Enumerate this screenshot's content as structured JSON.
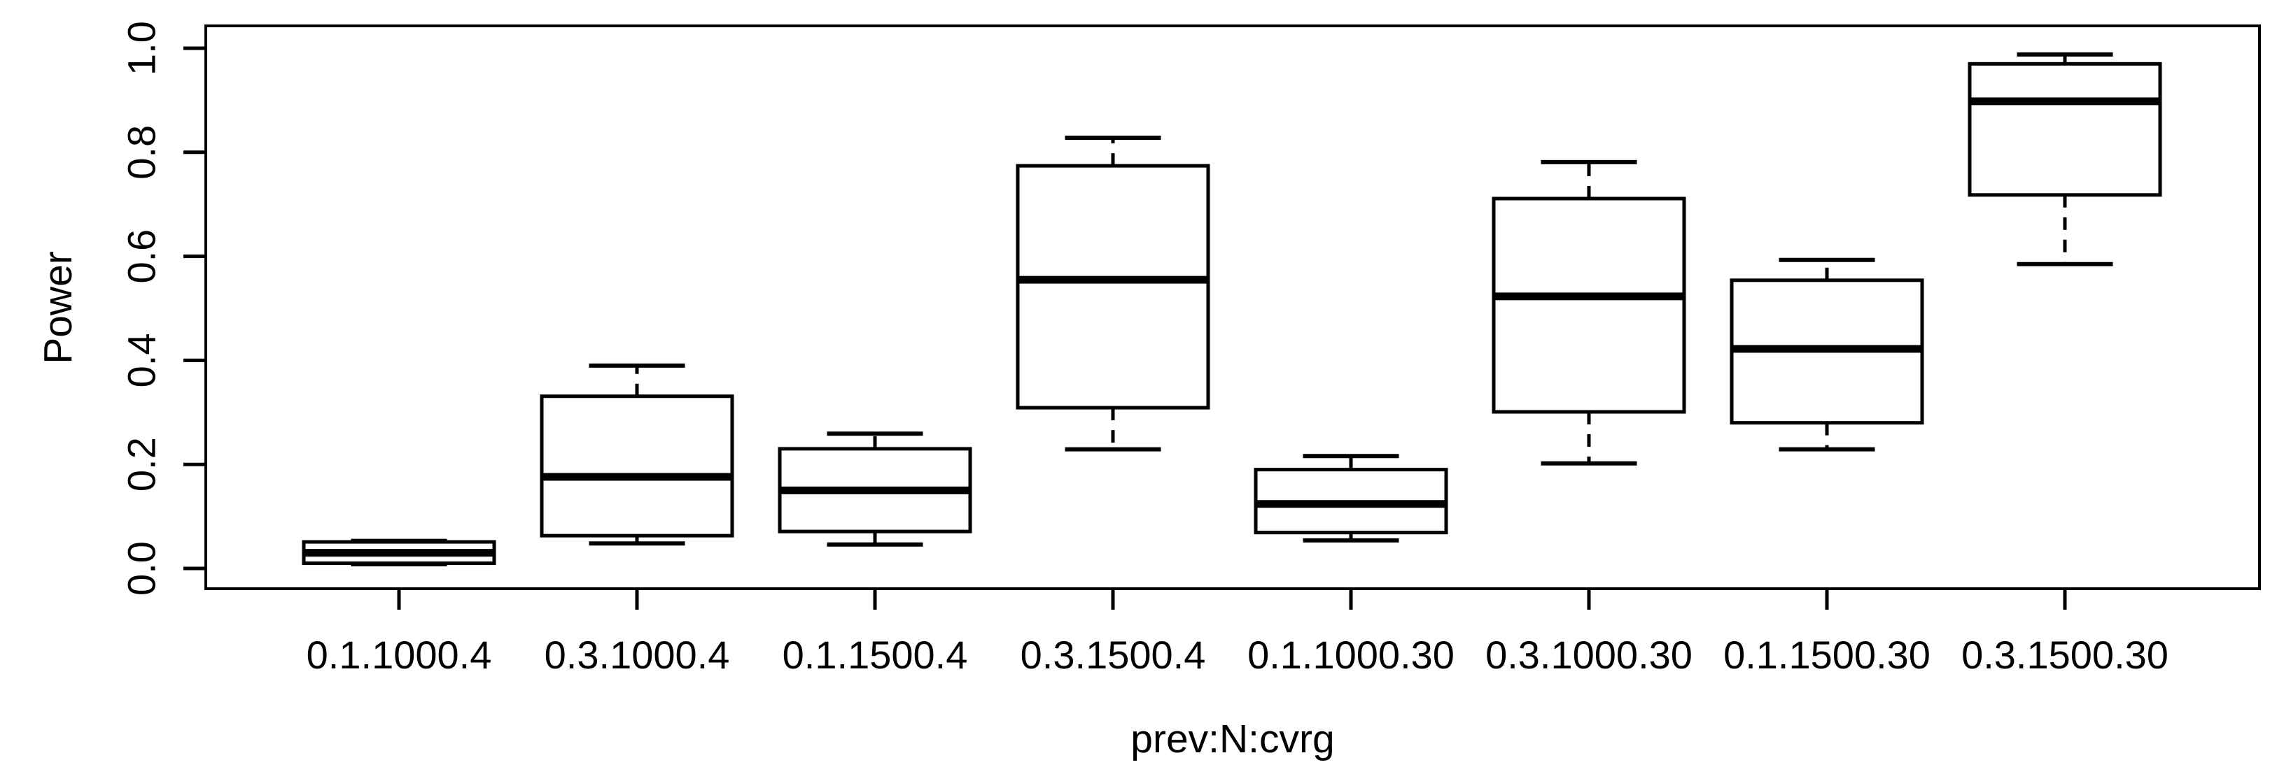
{
  "chart_data": {
    "type": "boxplot",
    "title": "",
    "xlabel": "prev:N:cvrg",
    "ylabel": "Power",
    "ylim": [
      0.0,
      1.0
    ],
    "grid": false,
    "legend": null,
    "background_color": "#ffffff",
    "stroke_color": "#000000",
    "y_ticks": [
      0.0,
      0.2,
      0.4,
      0.6,
      0.8,
      1.0
    ],
    "y_tick_labels": [
      "0.0",
      "0.2",
      "0.4",
      "0.6",
      "0.8",
      "1.0"
    ],
    "categories": [
      "0.1.1000.4",
      "0.3.1000.4",
      "0.1.1500.4",
      "0.3.1500.4",
      "0.1.1000.30",
      "0.3.1000.30",
      "0.1.1500.30",
      "0.3.1500.30"
    ],
    "series": [
      {
        "category": "0.1.1000.4",
        "whisker_low": 0.008,
        "q1": 0.01,
        "median": 0.03,
        "q3": 0.051,
        "whisker_high": 0.053
      },
      {
        "category": "0.3.1000.4",
        "whisker_low": 0.048,
        "q1": 0.063,
        "median": 0.176,
        "q3": 0.331,
        "whisker_high": 0.39
      },
      {
        "category": "0.1.1500.4",
        "whisker_low": 0.046,
        "q1": 0.071,
        "median": 0.15,
        "q3": 0.23,
        "whisker_high": 0.259
      },
      {
        "category": "0.3.1500.4",
        "whisker_low": 0.229,
        "q1": 0.309,
        "median": 0.555,
        "q3": 0.774,
        "whisker_high": 0.828
      },
      {
        "category": "0.1.1000.30",
        "whisker_low": 0.054,
        "q1": 0.069,
        "median": 0.124,
        "q3": 0.19,
        "whisker_high": 0.216
      },
      {
        "category": "0.3.1000.30",
        "whisker_low": 0.202,
        "q1": 0.301,
        "median": 0.523,
        "q3": 0.711,
        "whisker_high": 0.781
      },
      {
        "category": "0.1.1500.30",
        "whisker_low": 0.229,
        "q1": 0.28,
        "median": 0.422,
        "q3": 0.554,
        "whisker_high": 0.593
      },
      {
        "category": "0.3.1500.30",
        "whisker_low": 0.585,
        "q1": 0.718,
        "median": 0.898,
        "q3": 0.97,
        "whisker_high": 0.988
      }
    ]
  }
}
